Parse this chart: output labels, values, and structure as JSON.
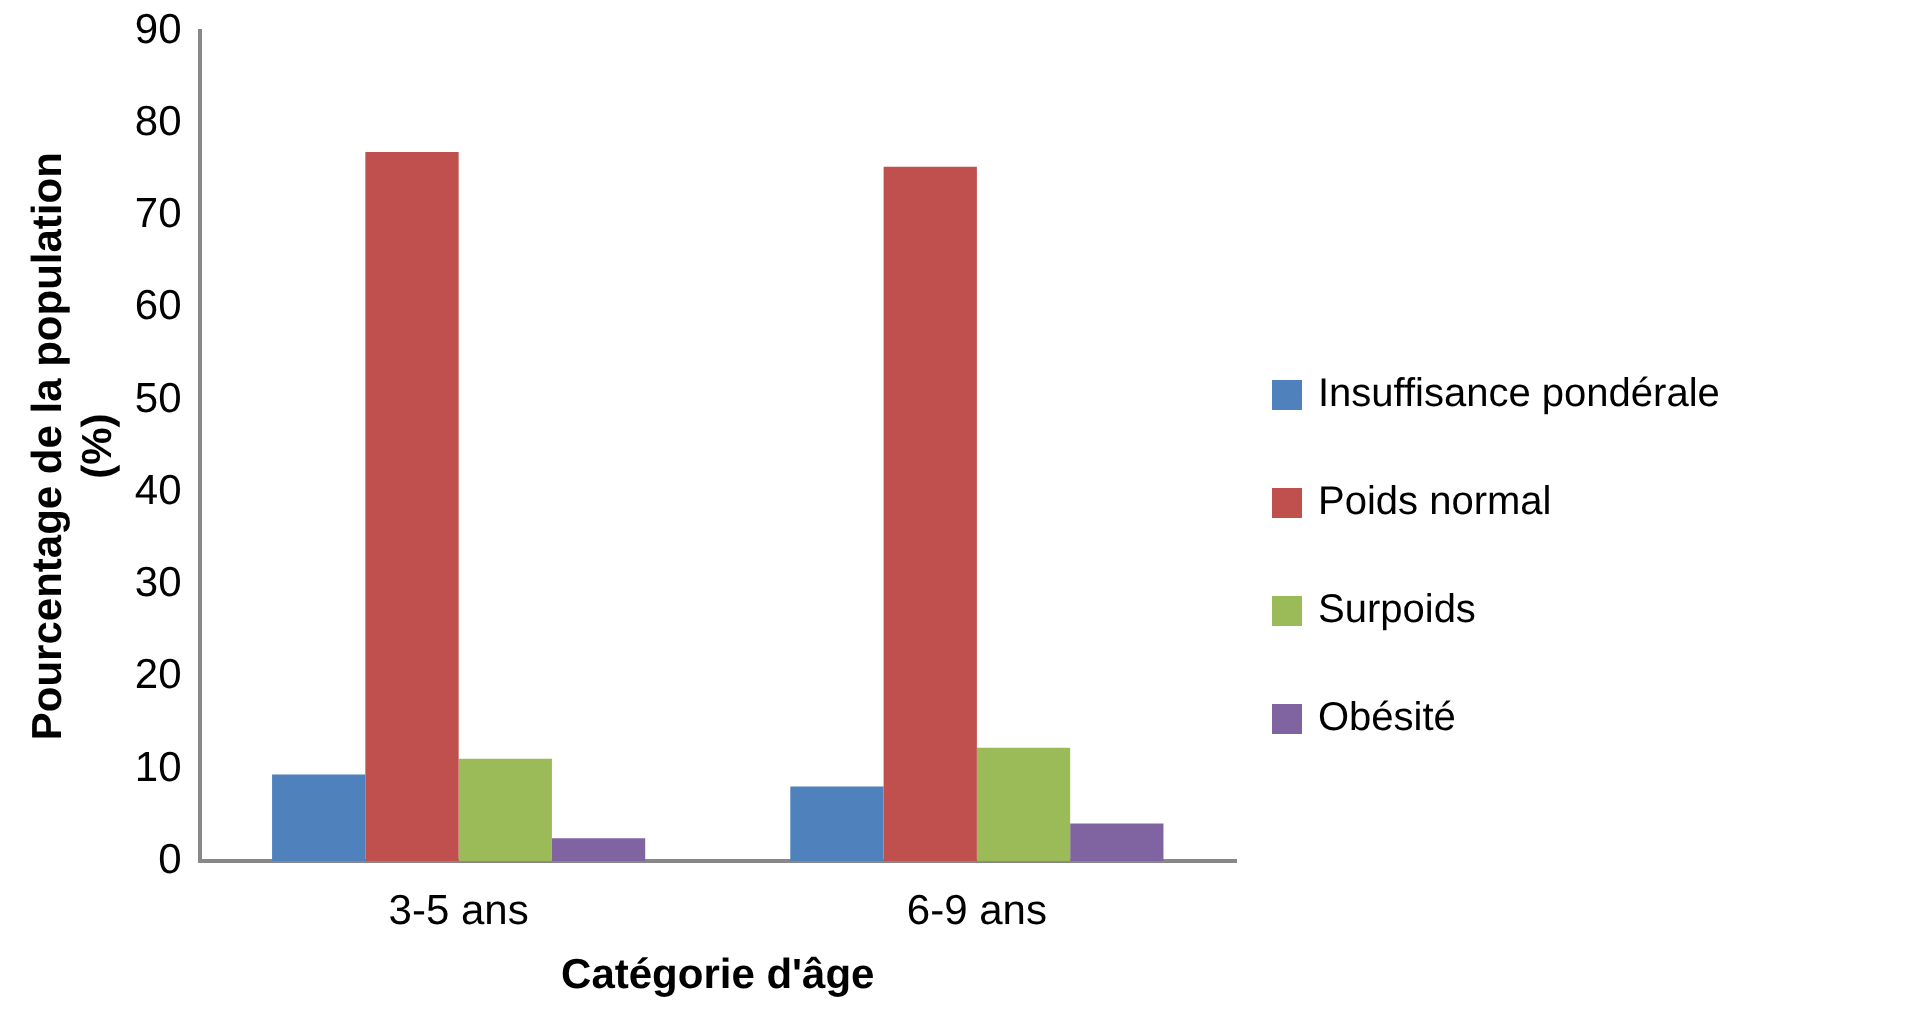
{
  "chart_data": {
    "type": "bar",
    "xlabel": "Catégorie d'âge",
    "ylabel": "Pourcentage de la population (%)",
    "categories": [
      "3-5 ans",
      "6-9 ans"
    ],
    "series": [
      {
        "name": "Insuffisance pondérale",
        "color": "#4f81bd",
        "values": [
          9.4,
          8.1
        ]
      },
      {
        "name": "Poids normal",
        "color": "#c0504d",
        "values": [
          76.9,
          75.3
        ]
      },
      {
        "name": "Surpoids",
        "color": "#9bbb59",
        "values": [
          11.1,
          12.3
        ]
      },
      {
        "name": "Obésité",
        "color": "#8064a2",
        "values": [
          2.5,
          4.1
        ]
      }
    ],
    "ylim": [
      0,
      90
    ],
    "yticks": [
      0,
      10,
      20,
      30,
      40,
      50,
      60,
      70,
      80,
      90
    ],
    "grid": false,
    "legend": "right"
  }
}
